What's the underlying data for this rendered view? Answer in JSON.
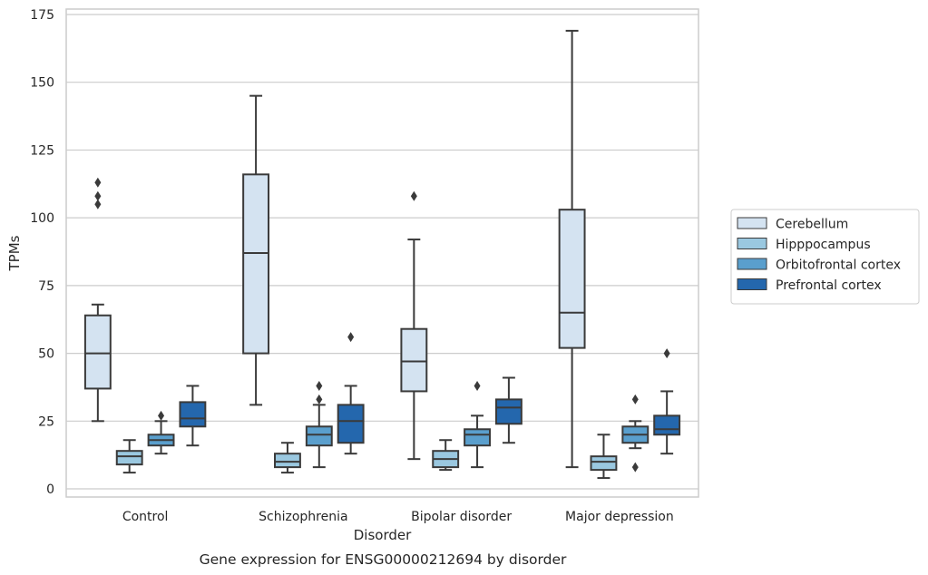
{
  "chart_data": {
    "type": "box",
    "title": "",
    "caption": "Gene expression for ENSG00000212694 by disorder",
    "xlabel": "Disorder",
    "ylabel": "TPMs",
    "ylim": [
      -3,
      177
    ],
    "yticks": [
      0,
      25,
      50,
      75,
      100,
      125,
      150,
      175
    ],
    "grid": "horizontal",
    "legend_position": "right",
    "categories": [
      "Control",
      "Schizophrenia",
      "Bipolar disorder",
      "Major depression"
    ],
    "series": [
      {
        "name": "Cerebellum",
        "color": "#d4e3f1",
        "boxes": [
          {
            "whisker_low": 25,
            "q1": 37,
            "median": 50,
            "q3": 64,
            "whisker_high": 68,
            "outliers": [
              105,
              108,
              113
            ]
          },
          {
            "whisker_low": 31,
            "q1": 50,
            "median": 87,
            "q3": 116,
            "whisker_high": 145,
            "outliers": []
          },
          {
            "whisker_low": 11,
            "q1": 36,
            "median": 47,
            "q3": 59,
            "whisker_high": 92,
            "outliers": [
              108
            ]
          },
          {
            "whisker_low": 8,
            "q1": 52,
            "median": 65,
            "q3": 103,
            "whisker_high": 169,
            "outliers": []
          }
        ]
      },
      {
        "name": "Hipppocampus",
        "color": "#9ac8e0",
        "boxes": [
          {
            "whisker_low": 6,
            "q1": 9,
            "median": 12,
            "q3": 14,
            "whisker_high": 18,
            "outliers": []
          },
          {
            "whisker_low": 6,
            "q1": 8,
            "median": 10,
            "q3": 13,
            "whisker_high": 17,
            "outliers": []
          },
          {
            "whisker_low": 7,
            "q1": 8,
            "median": 11,
            "q3": 14,
            "whisker_high": 18,
            "outliers": []
          },
          {
            "whisker_low": 4,
            "q1": 7,
            "median": 10,
            "q3": 12,
            "whisker_high": 20,
            "outliers": []
          }
        ]
      },
      {
        "name": "Orbitofrontal cortex",
        "color": "#5a9fcd",
        "boxes": [
          {
            "whisker_low": 13,
            "q1": 16,
            "median": 18,
            "q3": 20,
            "whisker_high": 25,
            "outliers": [
              27
            ]
          },
          {
            "whisker_low": 8,
            "q1": 16,
            "median": 20,
            "q3": 23,
            "whisker_high": 31,
            "outliers": [
              33,
              38
            ]
          },
          {
            "whisker_low": 8,
            "q1": 16,
            "median": 20,
            "q3": 22,
            "whisker_high": 27,
            "outliers": [
              38
            ]
          },
          {
            "whisker_low": 15,
            "q1": 17,
            "median": 20,
            "q3": 23,
            "whisker_high": 25,
            "outliers": [
              8,
              33
            ]
          }
        ]
      },
      {
        "name": "Prefrontal cortex",
        "color": "#2467ad",
        "boxes": [
          {
            "whisker_low": 16,
            "q1": 23,
            "median": 26,
            "q3": 32,
            "whisker_high": 38,
            "outliers": []
          },
          {
            "whisker_low": 13,
            "q1": 17,
            "median": 25,
            "q3": 31,
            "whisker_high": 38,
            "outliers": [
              56
            ]
          },
          {
            "whisker_low": 17,
            "q1": 24,
            "median": 30,
            "q3": 33,
            "whisker_high": 41,
            "outliers": []
          },
          {
            "whisker_low": 13,
            "q1": 20,
            "median": 22,
            "q3": 27,
            "whisker_high": 36,
            "outliers": [
              50
            ]
          }
        ]
      }
    ]
  }
}
